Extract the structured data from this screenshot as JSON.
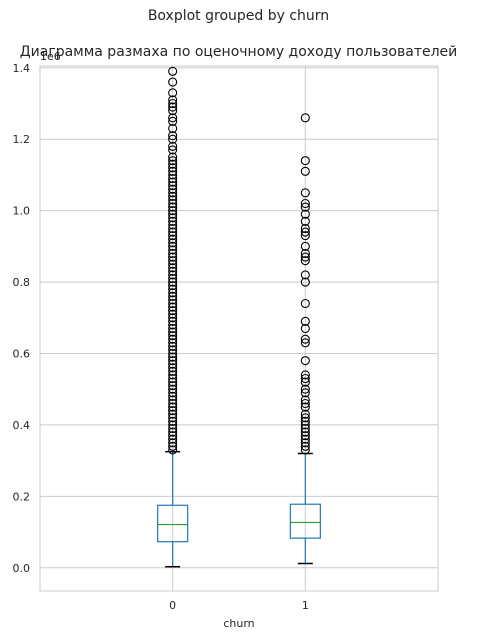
{
  "figure": {
    "suptitle": "Boxplot grouped by churn",
    "title": "Диаграмма размаха по оценочному доходу пользователей"
  },
  "chart_data": {
    "type": "boxplot",
    "xlabel": "churn",
    "ylabel": "",
    "scale_label": "1e6",
    "categories": [
      "0",
      "1"
    ],
    "ylim": [
      -0.065,
      1.405
    ],
    "yticks": [
      0.0,
      0.2,
      0.4,
      0.6,
      0.8,
      1.0,
      1.2,
      1.4
    ],
    "ytick_labels": [
      "0.0",
      "0.2",
      "0.4",
      "0.6",
      "0.8",
      "1.0",
      "1.2",
      "1.4"
    ],
    "grid": true,
    "colors": {
      "box": "#1f77b4",
      "median": "#2ca02c",
      "whisker": "#1f77b4",
      "cap": "#000000",
      "flier": "#000000",
      "grid": "#cccccc"
    },
    "boxes": [
      {
        "category": "0",
        "whisker_low": 0.003,
        "q1": 0.073,
        "median": 0.121,
        "q3": 0.175,
        "whisker_high": 0.325,
        "fliers": [
          1.39,
          1.36,
          1.33,
          1.31,
          1.3,
          1.29,
          1.28,
          1.26,
          1.25,
          1.23,
          1.21,
          1.2,
          1.18,
          1.17,
          1.15,
          1.14,
          1.13,
          1.12,
          1.11,
          1.1,
          1.09,
          1.08,
          1.07,
          1.06,
          1.05,
          1.04,
          1.03,
          1.02,
          1.01,
          1.0,
          0.99,
          0.98,
          0.97,
          0.96,
          0.95,
          0.94,
          0.93,
          0.92,
          0.91,
          0.9,
          0.89,
          0.88,
          0.87,
          0.86,
          0.85,
          0.84,
          0.83,
          0.82,
          0.81,
          0.8,
          0.79,
          0.78,
          0.77,
          0.76,
          0.75,
          0.74,
          0.73,
          0.72,
          0.71,
          0.7,
          0.69,
          0.68,
          0.67,
          0.66,
          0.65,
          0.64,
          0.63,
          0.62,
          0.61,
          0.6,
          0.59,
          0.58,
          0.57,
          0.56,
          0.55,
          0.54,
          0.53,
          0.52,
          0.51,
          0.5,
          0.49,
          0.48,
          0.47,
          0.46,
          0.45,
          0.44,
          0.43,
          0.42,
          0.41,
          0.4,
          0.39,
          0.38,
          0.37,
          0.36,
          0.35,
          0.34,
          0.33
        ]
      },
      {
        "category": "1",
        "whisker_low": 0.012,
        "q1": 0.083,
        "median": 0.127,
        "q3": 0.178,
        "whisker_high": 0.32,
        "fliers": [
          1.26,
          1.14,
          1.11,
          1.05,
          1.02,
          1.01,
          0.99,
          0.97,
          0.95,
          0.94,
          0.93,
          0.9,
          0.88,
          0.87,
          0.86,
          0.82,
          0.8,
          0.74,
          0.69,
          0.67,
          0.64,
          0.63,
          0.58,
          0.54,
          0.53,
          0.52,
          0.5,
          0.49,
          0.47,
          0.46,
          0.45,
          0.43,
          0.42,
          0.41,
          0.4,
          0.39,
          0.38,
          0.37,
          0.36,
          0.35,
          0.34,
          0.33
        ]
      }
    ]
  }
}
